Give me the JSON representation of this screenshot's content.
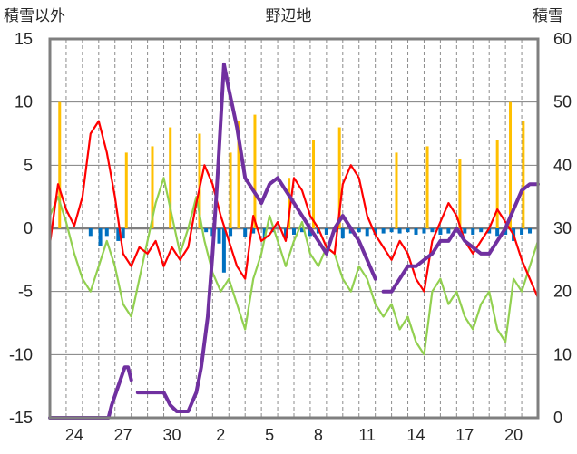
{
  "chart_data": {
    "type": "line",
    "title": "野辺地",
    "left_axis_label": "積雪以外",
    "right_axis_label": "積雪",
    "x_tick_labels": [
      "24",
      "27",
      "30",
      "2",
      "5",
      "8",
      "11",
      "14",
      "17",
      "20"
    ],
    "y_left": {
      "ticks": [
        "15",
        "10",
        "5",
        "0",
        "-5",
        "-10",
        "-15"
      ],
      "range": [
        -15,
        15
      ]
    },
    "y_right": {
      "ticks": [
        "60",
        "50",
        "40",
        "30",
        "20",
        "10",
        "0"
      ],
      "range": [
        0,
        60
      ]
    },
    "x_range_days": [
      0,
      30
    ],
    "grid": "vertical dashed daily, horizontal solid",
    "colors": {
      "temperature": "#ff0000",
      "precipitation": "#ffc000",
      "sunshine": "#92d050",
      "snow_depth": "#7030a0",
      "anomaly_bars": "#0070c0"
    },
    "series": [
      {
        "key": "temperature",
        "axis": "left",
        "points": [
          [
            0,
            -1.2
          ],
          [
            0.5,
            3.5
          ],
          [
            1,
            1.5
          ],
          [
            1.5,
            0.2
          ],
          [
            2,
            2.5
          ],
          [
            2.5,
            7.5
          ],
          [
            3,
            8.5
          ],
          [
            3.5,
            6
          ],
          [
            4,
            2.5
          ],
          [
            4.5,
            -2
          ],
          [
            5,
            -3
          ],
          [
            5.5,
            -1.5
          ],
          [
            6,
            -2
          ],
          [
            6.5,
            -1
          ],
          [
            7,
            -3
          ],
          [
            7.5,
            -1.5
          ],
          [
            8,
            -2.5
          ],
          [
            8.5,
            -1.5
          ],
          [
            9,
            2
          ],
          [
            9.5,
            5
          ],
          [
            10,
            3.5
          ],
          [
            10.5,
            1
          ],
          [
            11,
            -1
          ],
          [
            11.5,
            -3
          ],
          [
            12,
            -4
          ],
          [
            12.5,
            1
          ],
          [
            13,
            -1
          ],
          [
            13.5,
            -0.5
          ],
          [
            14,
            0.5
          ],
          [
            14.5,
            -1
          ],
          [
            15,
            4
          ],
          [
            15.5,
            3
          ],
          [
            16,
            1
          ],
          [
            16.5,
            0
          ],
          [
            17,
            -1.5
          ],
          [
            17.5,
            -2
          ],
          [
            18,
            3.5
          ],
          [
            18.5,
            5
          ],
          [
            19,
            4
          ],
          [
            19.5,
            1
          ],
          [
            20,
            -0.5
          ],
          [
            20.5,
            -1.5
          ],
          [
            21,
            -2.5
          ],
          [
            21.5,
            -1
          ],
          [
            22,
            -2
          ],
          [
            22.5,
            -4
          ],
          [
            23,
            -5
          ],
          [
            23.5,
            -1
          ],
          [
            24,
            0.5
          ],
          [
            24.5,
            2
          ],
          [
            25,
            1
          ],
          [
            25.5,
            -1
          ],
          [
            26,
            -2
          ],
          [
            26.5,
            -1
          ],
          [
            27,
            0
          ],
          [
            27.5,
            1.5
          ],
          [
            28,
            0.5
          ],
          [
            28.5,
            -0.5
          ],
          [
            29,
            -2.5
          ],
          [
            29.5,
            -4
          ],
          [
            30,
            -5.5
          ]
        ]
      },
      {
        "key": "sunshine",
        "axis": "left",
        "points": [
          [
            0,
            1
          ],
          [
            0.5,
            2.5
          ],
          [
            1,
            0.5
          ],
          [
            1.5,
            -2
          ],
          [
            2,
            -4
          ],
          [
            2.5,
            -5
          ],
          [
            3,
            -3
          ],
          [
            3.5,
            -1
          ],
          [
            4,
            -3
          ],
          [
            4.5,
            -6
          ],
          [
            5,
            -7
          ],
          [
            5.5,
            -4
          ],
          [
            6,
            -1
          ],
          [
            6.5,
            2
          ],
          [
            7,
            4
          ],
          [
            7.5,
            1
          ],
          [
            8,
            -2
          ],
          [
            8.5,
            0
          ],
          [
            9,
            2.5
          ],
          [
            9.5,
            -1
          ],
          [
            10,
            -3.5
          ],
          [
            10.5,
            -5
          ],
          [
            11,
            -4
          ],
          [
            11.5,
            -6
          ],
          [
            12,
            -8
          ],
          [
            12.5,
            -4
          ],
          [
            13,
            -2
          ],
          [
            13.5,
            1
          ],
          [
            14,
            -1
          ],
          [
            14.5,
            -3
          ],
          [
            15,
            -1
          ],
          [
            15.5,
            0.5
          ],
          [
            16,
            -2
          ],
          [
            16.5,
            -3
          ],
          [
            17,
            -1.5
          ],
          [
            17.5,
            -2
          ],
          [
            18,
            -4
          ],
          [
            18.5,
            -5
          ],
          [
            19,
            -3
          ],
          [
            19.5,
            -4
          ],
          [
            20,
            -6
          ],
          [
            20.5,
            -7
          ],
          [
            21,
            -6
          ],
          [
            21.5,
            -8
          ],
          [
            22,
            -7
          ],
          [
            22.5,
            -9
          ],
          [
            23,
            -10
          ],
          [
            23.5,
            -5
          ],
          [
            24,
            -4
          ],
          [
            24.5,
            -6
          ],
          [
            25,
            -5
          ],
          [
            25.5,
            -7
          ],
          [
            26,
            -8
          ],
          [
            26.5,
            -6
          ],
          [
            27,
            -5
          ],
          [
            27.5,
            -8
          ],
          [
            28,
            -9
          ],
          [
            28.5,
            -4
          ],
          [
            29,
            -5
          ],
          [
            29.5,
            -3
          ],
          [
            30,
            -1
          ]
        ]
      },
      {
        "key": "snow_depth",
        "axis": "right",
        "segments": [
          [
            [
              0,
              0
            ],
            [
              2,
              0
            ],
            [
              3,
              0
            ],
            [
              3.6,
              0
            ],
            [
              3.8,
              2
            ],
            [
              4.2,
              5
            ],
            [
              4.6,
              8
            ],
            [
              4.8,
              8
            ],
            [
              5,
              6
            ]
          ],
          [
            [
              5.4,
              4
            ],
            [
              6,
              4
            ],
            [
              7,
              4
            ],
            [
              7.4,
              2
            ],
            [
              7.8,
              1
            ],
            [
              8.5,
              1
            ],
            [
              9,
              4
            ],
            [
              9.3,
              8
            ],
            [
              9.7,
              16
            ],
            [
              10,
              26
            ],
            [
              10.3,
              38
            ],
            [
              10.7,
              56
            ],
            [
              11,
              52
            ],
            [
              11.5,
              46
            ],
            [
              12,
              38
            ],
            [
              12.5,
              36
            ],
            [
              13,
              34
            ],
            [
              13.5,
              37
            ],
            [
              14,
              38
            ],
            [
              14.5,
              36
            ],
            [
              15,
              34
            ],
            [
              15.5,
              32
            ],
            [
              16,
              30
            ],
            [
              16.5,
              28
            ],
            [
              17,
              26
            ],
            [
              17.5,
              30
            ],
            [
              18,
              32
            ],
            [
              18.5,
              30
            ],
            [
              19,
              28
            ],
            [
              19.5,
              25
            ],
            [
              20,
              22
            ]
          ],
          [
            [
              20.5,
              20
            ],
            [
              21,
              20
            ],
            [
              21.5,
              22
            ],
            [
              22,
              24
            ],
            [
              22.5,
              24
            ],
            [
              23,
              25
            ],
            [
              23.5,
              26
            ],
            [
              24,
              28
            ],
            [
              24.5,
              28
            ],
            [
              25,
              30
            ],
            [
              25.5,
              28
            ],
            [
              26,
              27
            ],
            [
              26.5,
              26
            ],
            [
              27,
              26
            ],
            [
              27.5,
              28
            ],
            [
              28,
              30
            ],
            [
              28.5,
              33
            ],
            [
              29,
              36
            ],
            [
              29.5,
              37
            ],
            [
              30,
              37
            ]
          ]
        ]
      },
      {
        "key": "precipitation",
        "axis": "right",
        "bars": [
          [
            0.6,
            50
          ],
          [
            4.7,
            42
          ],
          [
            6.3,
            43
          ],
          [
            7.4,
            46
          ],
          [
            9.2,
            45
          ],
          [
            11.1,
            42
          ],
          [
            11.6,
            47
          ],
          [
            12.6,
            48
          ],
          [
            14.7,
            38
          ],
          [
            16.2,
            44
          ],
          [
            17.8,
            46
          ],
          [
            21.3,
            42
          ],
          [
            23.2,
            43
          ],
          [
            25.2,
            41
          ],
          [
            27.5,
            44
          ],
          [
            28.3,
            50
          ],
          [
            29.1,
            47
          ]
        ]
      },
      {
        "key": "anomaly",
        "axis": "left",
        "bars": [
          [
            2.5,
            -0.6
          ],
          [
            3.1,
            -1.4
          ],
          [
            3.5,
            -0.6
          ],
          [
            4.2,
            -1.0
          ],
          [
            4.5,
            -0.8
          ],
          [
            9.6,
            -0.3
          ],
          [
            10.0,
            -0.6
          ],
          [
            10.4,
            -1.2
          ],
          [
            10.7,
            -3.5
          ],
          [
            11.1,
            -0.6
          ],
          [
            12.0,
            -0.7
          ],
          [
            12.5,
            -0.4
          ],
          [
            13.2,
            -0.8
          ],
          [
            13.7,
            -0.3
          ],
          [
            14.5,
            -0.8
          ],
          [
            15.0,
            -0.5
          ],
          [
            15.5,
            -0.3
          ],
          [
            16.0,
            -0.6
          ],
          [
            16.5,
            -0.4
          ],
          [
            17.0,
            -0.5
          ],
          [
            17.6,
            -0.3
          ],
          [
            18.0,
            -0.8
          ],
          [
            18.5,
            -0.4
          ],
          [
            19.0,
            -0.3
          ],
          [
            19.5,
            -0.6
          ],
          [
            20.0,
            -0.5
          ],
          [
            20.5,
            -0.4
          ],
          [
            21.0,
            -0.3
          ],
          [
            21.5,
            -0.4
          ],
          [
            22.0,
            -0.3
          ],
          [
            22.5,
            -0.5
          ],
          [
            23.0,
            -0.4
          ],
          [
            23.5,
            -0.3
          ],
          [
            24.0,
            -0.5
          ],
          [
            24.5,
            -0.4
          ],
          [
            25.0,
            -0.3
          ],
          [
            25.5,
            -0.4
          ],
          [
            26.0,
            -0.5
          ],
          [
            26.5,
            -0.3
          ],
          [
            27.0,
            -0.4
          ],
          [
            27.5,
            -0.6
          ],
          [
            28.0,
            -0.5
          ],
          [
            28.5,
            -1.0
          ],
          [
            29.0,
            -0.5
          ],
          [
            29.5,
            -0.4
          ]
        ]
      }
    ]
  }
}
